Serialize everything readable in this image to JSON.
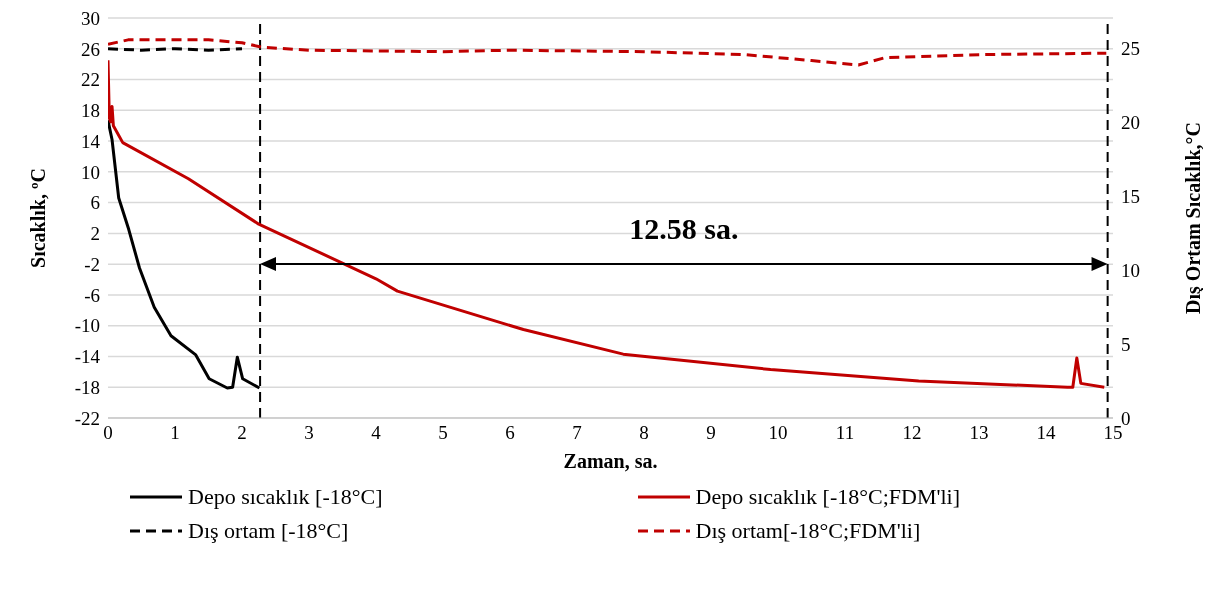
{
  "chart_data": {
    "type": "line",
    "xlabel": "Zaman, sa.",
    "ylabel": "Sıcaklık, ºC",
    "y2label": "Dış Ortam Sıcaklık,°C",
    "xlim": [
      0,
      15
    ],
    "xticks": [
      0,
      1,
      2,
      3,
      4,
      5,
      6,
      7,
      8,
      9,
      10,
      11,
      12,
      13,
      14,
      15
    ],
    "ylim": [
      -22,
      30
    ],
    "yticks": [
      -22,
      -18,
      -14,
      -10,
      -6,
      -2,
      2,
      6,
      10,
      14,
      18,
      22,
      26,
      30
    ],
    "y2lim": [
      0,
      27.08
    ],
    "y2ticks": [
      0,
      5,
      10,
      15,
      20,
      25
    ],
    "grid": "y",
    "legend": "bottom",
    "marker": "none",
    "series": [
      {
        "name": "Depo sıcaklık [-18°C]",
        "color": "#000000",
        "line_style": "solid",
        "x": [
          0,
          0.06,
          0.16,
          0.31,
          0.47,
          0.69,
          0.94,
          1.31,
          1.51,
          1.78,
          1.86,
          1.93,
          2.01,
          2.26
        ],
        "values": [
          16.7,
          14.2,
          6.6,
          2.5,
          -2.5,
          -7.6,
          -11.3,
          -13.8,
          -16.9,
          -18.1,
          -18,
          -14.1,
          -16.9,
          -18.1
        ]
      },
      {
        "name": "Depo sıcaklık [-18°C;FDM'li]",
        "color": "#c00000",
        "line_style": "solid",
        "x": [
          0,
          0.02,
          0.04,
          0.06,
          0.08,
          0.22,
          1.2,
          2.25,
          4.0,
          4.32,
          6.2,
          7.69,
          9.89,
          12.1,
          14.32,
          14.4,
          14.46,
          14.52,
          14.87
        ],
        "values": [
          24.5,
          17,
          16.5,
          18.5,
          16,
          13.8,
          9.1,
          3.2,
          -3.9,
          -5.5,
          -10.5,
          -13.7,
          -15.7,
          -17.2,
          -18,
          -18,
          -14.2,
          -17.5,
          -18
        ]
      },
      {
        "name": "Dış ortam [-18°C]",
        "color": "#000000",
        "line_style": "dashed",
        "axis": "y2",
        "x": [
          0,
          0.5,
          1,
          1.5,
          2.0
        ],
        "values": [
          25,
          24.9,
          25,
          24.9,
          25
        ]
      },
      {
        "name": "Dış ortam[-18°C;FDM'li]",
        "color": "#c00000",
        "line_style": "dashed",
        "axis": "y2",
        "x": [
          0,
          0.3,
          1.5,
          2.0,
          2.3,
          3,
          5,
          6,
          8,
          9.5,
          10.5,
          11.2,
          11.6,
          13,
          14.9
        ],
        "values": [
          25.3,
          25.6,
          25.6,
          25.4,
          25.1,
          24.9,
          24.8,
          24.9,
          24.8,
          24.6,
          24.2,
          23.9,
          24.4,
          24.6,
          24.7
        ]
      }
    ],
    "ref_lines": [
      {
        "axis": "x",
        "value": 2.27,
        "color": "#000000",
        "line_style": "dashed"
      },
      {
        "axis": "x",
        "value": 14.92,
        "color": "#000000",
        "line_style": "dashed"
      }
    ],
    "annotations": [
      "12.58 sa."
    ]
  }
}
